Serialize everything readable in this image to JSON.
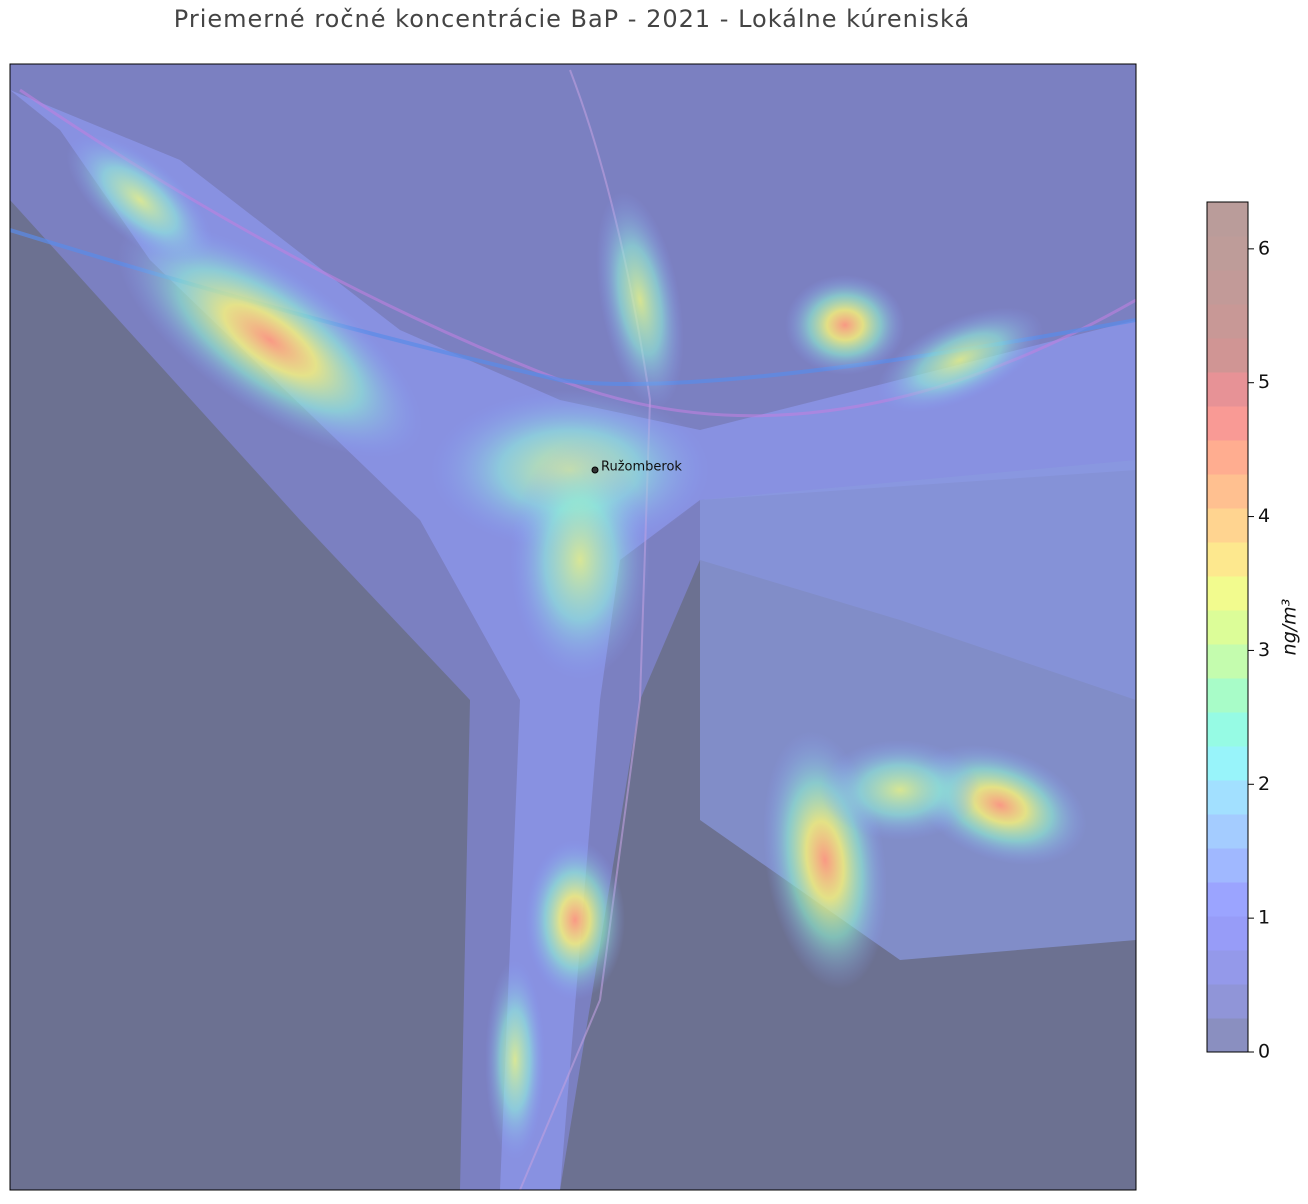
{
  "chart_data": {
    "type": "heatmap",
    "title": "Priemerné ročné koncentrácie BaP - 2021 - Lokálne kúreniská",
    "place_label": "Ružomberok",
    "colorbar": {
      "label": "ng/m³",
      "lim": [
        0,
        6.35
      ],
      "ticks": [
        0,
        1,
        2,
        3,
        4,
        5,
        6
      ],
      "colors": [
        "#8a8fc0",
        "#9095d8",
        "#9499ea",
        "#979cf8",
        "#9ba4ff",
        "#a0b8ff",
        "#a4ccff",
        "#a2e0ff",
        "#98f4fa",
        "#96fbe4",
        "#a8fcc8",
        "#c4fcae",
        "#dcfd98",
        "#f2fb8e",
        "#fde88e",
        "#ffd490",
        "#ffc090",
        "#ffad90",
        "#f99a95",
        "#e79296",
        "#d09594",
        "#c89896",
        "#c29a98",
        "#be9c99",
        "#ba9c9a"
      ]
    }
  }
}
